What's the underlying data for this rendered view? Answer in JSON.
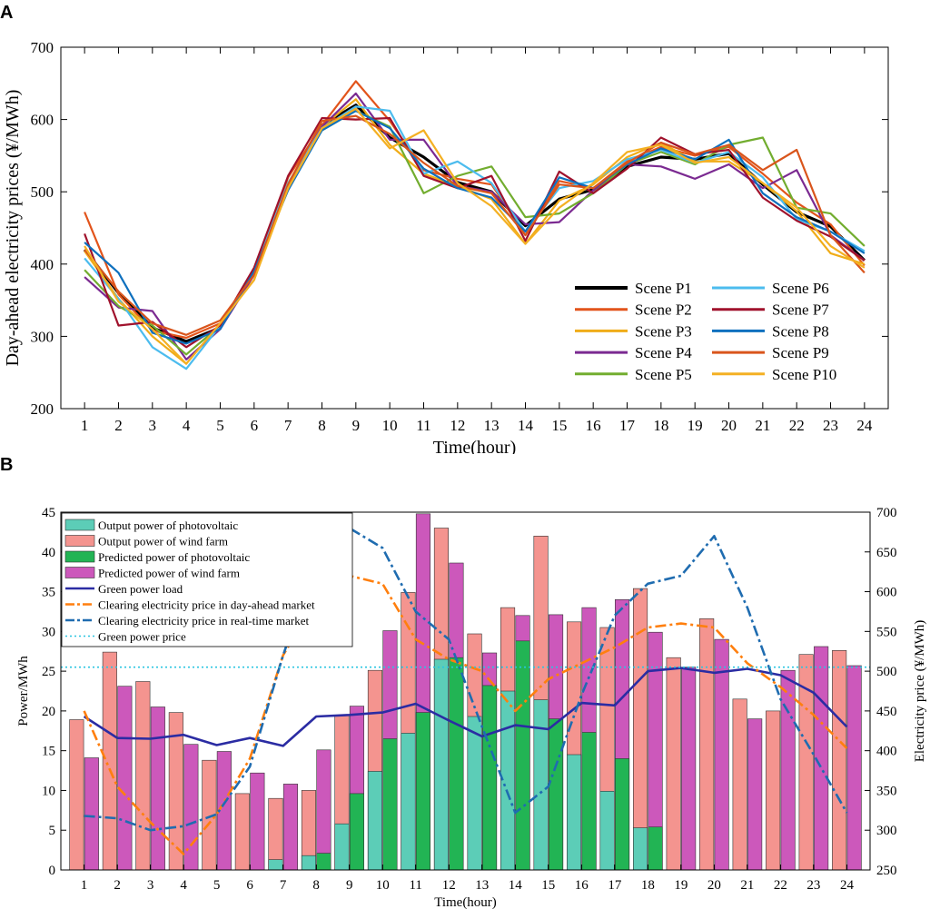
{
  "chart_data": [
    {
      "panel": "A",
      "type": "line",
      "xlabel": "Time(hour)",
      "ylabel": "Day-ahead electricity prices (¥/MWh)",
      "xlim": [
        0.3,
        24.7
      ],
      "ylim": [
        200,
        700
      ],
      "xticks": [
        1,
        2,
        3,
        4,
        5,
        6,
        7,
        8,
        9,
        10,
        11,
        12,
        13,
        14,
        15,
        16,
        17,
        18,
        19,
        20,
        21,
        22,
        23,
        24
      ],
      "yticks": [
        200,
        300,
        400,
        500,
        600,
        700
      ],
      "legend_position": "bottom-right",
      "series": [
        {
          "name": "Scene P1",
          "color": "#000000",
          "width": 3.2,
          "values": [
            420,
            360,
            312,
            293,
            312,
            392,
            508,
            592,
            620,
            575,
            548,
            513,
            500,
            453,
            490,
            503,
            535,
            548,
            545,
            553,
            510,
            472,
            452,
            405
          ]
        },
        {
          "name": "Scene P2",
          "color": "#e2541b",
          "width": 2.2,
          "values": [
            472,
            358,
            308,
            298,
            318,
            385,
            520,
            592,
            653,
            598,
            530,
            518,
            510,
            440,
            515,
            505,
            542,
            562,
            550,
            562,
            525,
            485,
            455,
            398
          ]
        },
        {
          "name": "Scene P3",
          "color": "#f0ac18",
          "width": 2.2,
          "values": [
            418,
            352,
            300,
            262,
            318,
            378,
            512,
            590,
            628,
            565,
            525,
            508,
            490,
            428,
            488,
            510,
            548,
            568,
            542,
            542,
            512,
            473,
            415,
            400
          ]
        },
        {
          "name": "Scene P4",
          "color": "#7b2a91",
          "width": 2.2,
          "values": [
            382,
            340,
            335,
            268,
            310,
            385,
            510,
            590,
            636,
            572,
            572,
            508,
            500,
            455,
            458,
            502,
            538,
            535,
            518,
            538,
            505,
            530,
            440,
            405
          ]
        },
        {
          "name": "Scene P5",
          "color": "#72ad2f",
          "width": 2.2,
          "values": [
            392,
            342,
            315,
            275,
            315,
            392,
            510,
            585,
            612,
            590,
            498,
            522,
            535,
            465,
            470,
            498,
            538,
            555,
            538,
            565,
            575,
            478,
            470,
            425
          ]
        },
        {
          "name": "Scene P6",
          "color": "#4cbcee",
          "width": 2.2,
          "values": [
            408,
            352,
            285,
            255,
            315,
            390,
            512,
            588,
            618,
            612,
            525,
            542,
            512,
            445,
            505,
            515,
            545,
            558,
            540,
            555,
            520,
            462,
            445,
            418
          ]
        },
        {
          "name": "Scene P7",
          "color": "#a0122c",
          "width": 2.2,
          "values": [
            442,
            315,
            320,
            285,
            315,
            395,
            522,
            602,
            600,
            602,
            522,
            505,
            522,
            432,
            528,
            498,
            532,
            575,
            552,
            558,
            492,
            460,
            438,
            405
          ]
        },
        {
          "name": "Scene P8",
          "color": "#0e70be",
          "width": 2.2,
          "values": [
            430,
            388,
            305,
            290,
            310,
            390,
            502,
            585,
            612,
            588,
            532,
            505,
            492,
            445,
            520,
            505,
            538,
            560,
            545,
            572,
            498,
            465,
            445,
            415
          ]
        },
        {
          "name": "Scene P9",
          "color": "#d9551c",
          "width": 2.2,
          "values": [
            420,
            362,
            318,
            302,
            322,
            385,
            510,
            598,
            605,
            580,
            540,
            508,
            498,
            440,
            510,
            505,
            540,
            568,
            552,
            565,
            530,
            558,
            440,
            388
          ]
        },
        {
          "name": "Scene P10",
          "color": "#f4b023",
          "width": 2.2,
          "values": [
            425,
            348,
            310,
            262,
            318,
            378,
            505,
            588,
            615,
            560,
            585,
            512,
            480,
            428,
            478,
            512,
            555,
            565,
            540,
            548,
            512,
            478,
            425,
            395
          ]
        }
      ]
    },
    {
      "panel": "B",
      "type": "bar",
      "xlabel": "Time(hour)",
      "ylabel": "Power/MWh",
      "ylabel_right": "Electricity price (¥/MWh)",
      "xlim": [
        0.3,
        24.7
      ],
      "ylim": [
        0,
        45
      ],
      "ylim_right": [
        250,
        700
      ],
      "xticks": [
        1,
        2,
        3,
        4,
        5,
        6,
        7,
        8,
        9,
        10,
        11,
        12,
        13,
        14,
        15,
        16,
        17,
        18,
        19,
        20,
        21,
        22,
        23,
        24
      ],
      "yticks": [
        0,
        5,
        10,
        15,
        20,
        25,
        30,
        35,
        40,
        45
      ],
      "yticks_right": [
        250,
        300,
        350,
        400,
        450,
        500,
        550,
        600,
        650,
        700
      ],
      "legend_position": "top-left",
      "bar_series": [
        {
          "name": "Output power of wind farm",
          "color": "#f4948f",
          "slot": "left",
          "values": [
            18.9,
            27.4,
            23.7,
            19.8,
            13.8,
            9.6,
            9.0,
            10.0,
            19.5,
            25.1,
            34.9,
            43.0,
            29.7,
            33.0,
            42.0,
            31.2,
            30.5,
            35.4,
            26.7,
            31.6,
            21.5,
            20.0,
            27.1,
            27.6
          ]
        },
        {
          "name": "Output power of photovoltaic",
          "color": "#5ccdb7",
          "slot": "left",
          "values": [
            0,
            0,
            0,
            0,
            0,
            0,
            1.3,
            1.8,
            5.8,
            12.4,
            17.2,
            26.5,
            19.3,
            22.5,
            21.4,
            14.5,
            9.9,
            5.3,
            0,
            0,
            0,
            0,
            0,
            0
          ]
        },
        {
          "name": "Predicted power of wind farm",
          "color": "#cc58bb",
          "slot": "right",
          "values": [
            14.1,
            23.1,
            20.5,
            15.8,
            14.9,
            12.2,
            10.8,
            15.1,
            20.6,
            30.1,
            44.8,
            38.6,
            27.3,
            32.0,
            32.1,
            33.0,
            34.0,
            29.9,
            25.5,
            29.0,
            19.0,
            25.1,
            28.1,
            25.7
          ]
        },
        {
          "name": "Predicted power of photovoltaic",
          "color": "#22b454",
          "slot": "right",
          "values": [
            0,
            0,
            0,
            0,
            0,
            0,
            0,
            2.1,
            9.6,
            16.5,
            19.8,
            26.7,
            23.2,
            28.8,
            19.0,
            17.3,
            14.0,
            5.4,
            0,
            0,
            0,
            0,
            0,
            0
          ]
        }
      ],
      "line_series": [
        {
          "name": "Green power load",
          "axis": "left",
          "color": "#2b2ca3",
          "style": "solid",
          "values": [
            19.3,
            16.6,
            16.5,
            17.0,
            15.7,
            16.6,
            15.6,
            19.3,
            19.5,
            19.8,
            20.9,
            18.8,
            16.8,
            18.2,
            17.7,
            21.0,
            20.7,
            25.0,
            25.4,
            24.8,
            25.3,
            24.5,
            22.3,
            18.0
          ]
        },
        {
          "name": "Clearing electricity price in day-ahead market",
          "axis": "right",
          "color": "#ff7f0e",
          "style": "dashdot",
          "values": [
            450,
            355,
            310,
            270,
            320,
            390,
            520,
            590,
            620,
            610,
            540,
            515,
            500,
            450,
            490,
            510,
            530,
            555,
            560,
            555,
            510,
            480,
            445,
            403
          ]
        },
        {
          "name": "Clearing electricity price in real-time market",
          "axis": "right",
          "color": "#1f6cb0",
          "style": "dashdot",
          "values": [
            318,
            315,
            300,
            305,
            320,
            380,
            520,
            640,
            680,
            655,
            575,
            540,
            430,
            322,
            355,
            470,
            570,
            610,
            620,
            670,
            580,
            465,
            395,
            322
          ]
        },
        {
          "name": "Green power price",
          "axis": "right",
          "color": "#29c5e0",
          "style": "dotted",
          "values": [
            505,
            505,
            505,
            505,
            505,
            505,
            505,
            505,
            505,
            505,
            505,
            505,
            505,
            505,
            505,
            505,
            505,
            505,
            505,
            505,
            505,
            505,
            505,
            505
          ]
        }
      ]
    }
  ],
  "labels": {
    "panel_a": "A",
    "panel_b": "B"
  }
}
